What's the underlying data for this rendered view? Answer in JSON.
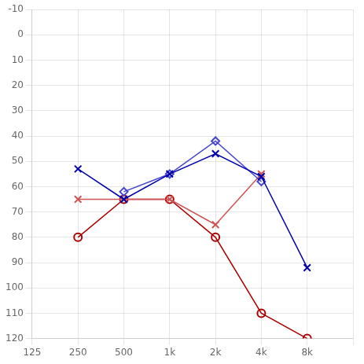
{
  "chart_data": {
    "type": "line",
    "categories": [
      "125",
      "250",
      "500",
      "1k",
      "2k",
      "4k",
      "8k",
      null
    ],
    "ylim": [
      120,
      -10
    ],
    "yticks": [
      -10,
      0,
      10,
      20,
      30,
      40,
      50,
      60,
      70,
      80,
      90,
      100,
      110,
      120
    ],
    "grid": true,
    "series": [
      {
        "color": "#0000aa",
        "marker": "x",
        "values": [
          null,
          53,
          65,
          55,
          47,
          56,
          92,
          null
        ]
      },
      {
        "color": "#4444cc",
        "marker": "diamond",
        "values": [
          null,
          null,
          62,
          55,
          42,
          58,
          null,
          null
        ]
      },
      {
        "color": "#cc5555",
        "marker": "x",
        "values": [
          null,
          65,
          65,
          65,
          75,
          55,
          null,
          null
        ]
      },
      {
        "color": "#aa0000",
        "marker": "circle",
        "values": [
          null,
          80,
          65,
          65,
          80,
          110,
          120,
          null
        ]
      }
    ]
  }
}
